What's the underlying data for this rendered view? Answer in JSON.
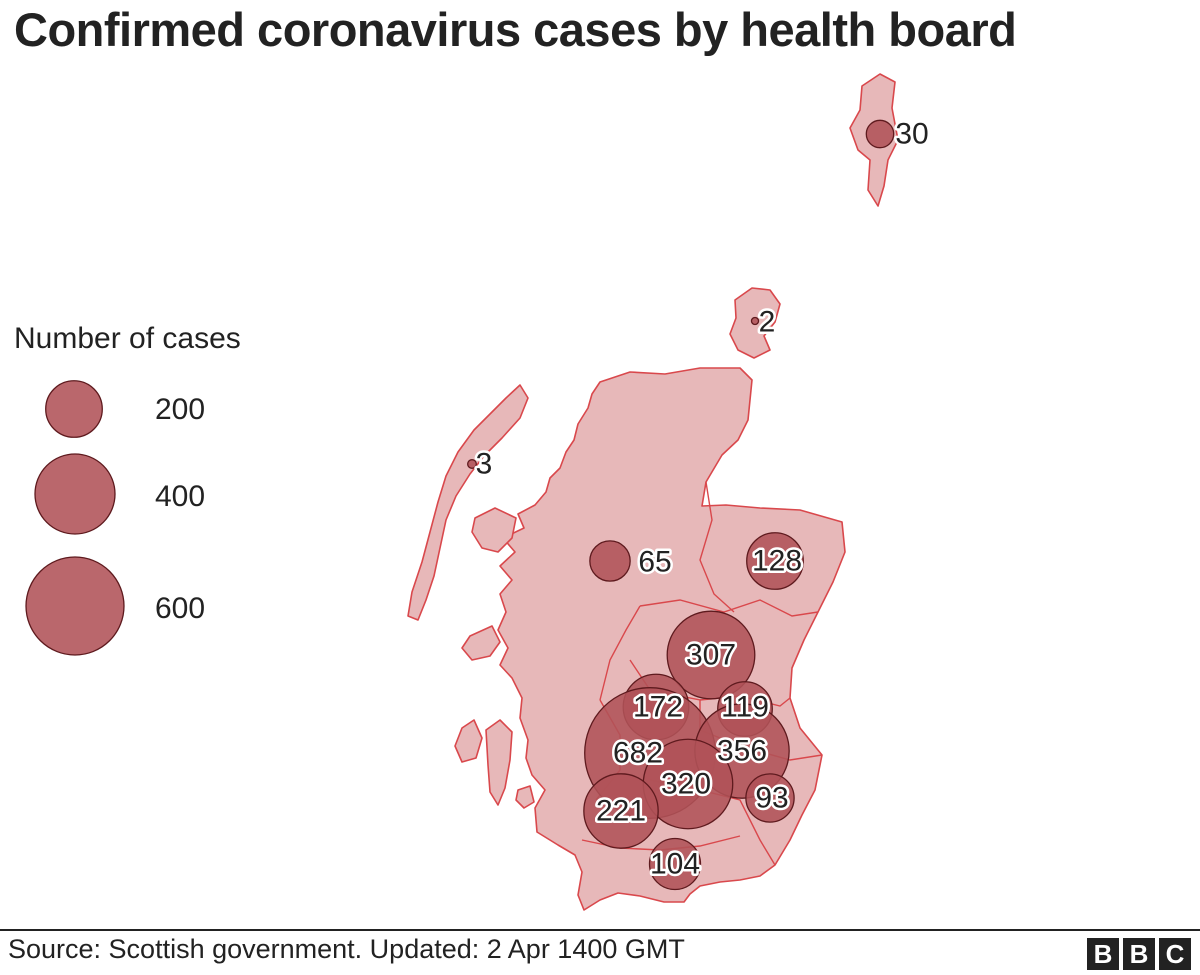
{
  "title": "Confirmed coronavirus cases by health board",
  "legend": {
    "title": "Number of cases",
    "items": [
      {
        "value": 200,
        "label": "200"
      },
      {
        "value": 400,
        "label": "400"
      },
      {
        "value": 600,
        "label": "600"
      }
    ]
  },
  "boards": [
    {
      "label": "30",
      "cases": 30
    },
    {
      "label": "2",
      "cases": 2
    },
    {
      "label": "3",
      "cases": 3
    },
    {
      "label": "65",
      "cases": 65
    },
    {
      "label": "128",
      "cases": 128
    },
    {
      "label": "307",
      "cases": 307
    },
    {
      "label": "172",
      "cases": 172
    },
    {
      "label": "119",
      "cases": 119
    },
    {
      "label": "682",
      "cases": 682
    },
    {
      "label": "356",
      "cases": 356
    },
    {
      "label": "320",
      "cases": 320
    },
    {
      "label": "93",
      "cases": 93
    },
    {
      "label": "221",
      "cases": 221
    },
    {
      "label": "104",
      "cases": 104
    }
  ],
  "source": "Source: Scottish government. Updated: 2 Apr 1400 GMT",
  "brand": {
    "letters": [
      "B",
      "B",
      "C"
    ]
  },
  "colors": {
    "land": "#e7b8b9",
    "border": "#d9484c",
    "bubble": "#b05258",
    "bubble_stroke": "#5e1a1e"
  }
}
